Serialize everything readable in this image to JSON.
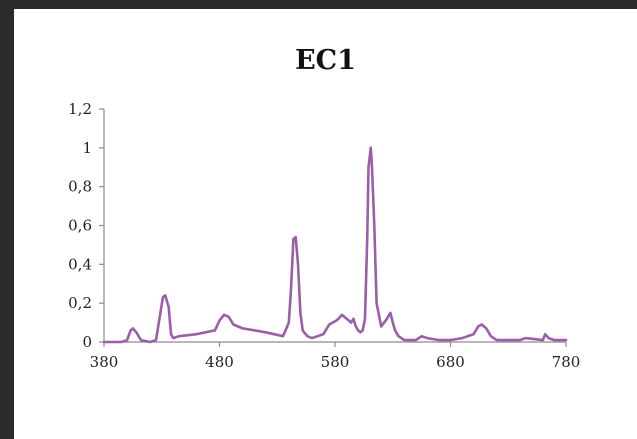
{
  "chart_data": {
    "type": "line",
    "title": "EC1",
    "xlabel": "",
    "ylabel": "",
    "xlim": [
      380,
      780
    ],
    "ylim": [
      0,
      1.2
    ],
    "x_ticks": [
      380,
      480,
      580,
      680,
      780
    ],
    "x_tick_labels": [
      "380",
      "480",
      "580",
      "680",
      "780"
    ],
    "y_ticks": [
      0,
      0.2,
      0.4,
      0.6,
      0.8,
      1,
      1.2
    ],
    "y_tick_labels": [
      "0",
      "0,2",
      "0,4",
      "0,6",
      "0,8",
      "1",
      "1,2"
    ],
    "grid": false,
    "legend": "none",
    "line_color": "#9b5fa8",
    "axis_color": "#8c8c8c",
    "series": [
      {
        "x": [
          380,
          395,
          400,
          403,
          405,
          408,
          412,
          420,
          425,
          431,
          433,
          436,
          438,
          440,
          445,
          460,
          476,
          480,
          484,
          488,
          492,
          500,
          520,
          535,
          540,
          542,
          544,
          546,
          548,
          550,
          552,
          556,
          560,
          570,
          575,
          578,
          581,
          583,
          586,
          590,
          594,
          596,
          598,
          600,
          602,
          604,
          606,
          608,
          609,
          611,
          612,
          614,
          616,
          620,
          625,
          628,
          630,
          632,
          635,
          640,
          650,
          655,
          660,
          670,
          675,
          680,
          690,
          700,
          704,
          707,
          711,
          715,
          720,
          740,
          745,
          760,
          762,
          765,
          770,
          780
        ],
        "y": [
          0,
          0,
          0.01,
          0.06,
          0.07,
          0.05,
          0.01,
          0,
          0.01,
          0.23,
          0.24,
          0.18,
          0.04,
          0.02,
          0.03,
          0.04,
          0.06,
          0.11,
          0.14,
          0.13,
          0.09,
          0.07,
          0.05,
          0.03,
          0.1,
          0.28,
          0.53,
          0.54,
          0.4,
          0.15,
          0.06,
          0.03,
          0.02,
          0.04,
          0.09,
          0.1,
          0.11,
          0.12,
          0.14,
          0.12,
          0.1,
          0.12,
          0.08,
          0.06,
          0.05,
          0.06,
          0.12,
          0.55,
          0.9,
          1.0,
          0.9,
          0.6,
          0.2,
          0.08,
          0.12,
          0.15,
          0.1,
          0.06,
          0.03,
          0.01,
          0.01,
          0.03,
          0.02,
          0.01,
          0.01,
          0.01,
          0.02,
          0.04,
          0.08,
          0.09,
          0.07,
          0.03,
          0.01,
          0.01,
          0.02,
          0.01,
          0.04,
          0.02,
          0.01,
          0.01
        ]
      }
    ]
  }
}
